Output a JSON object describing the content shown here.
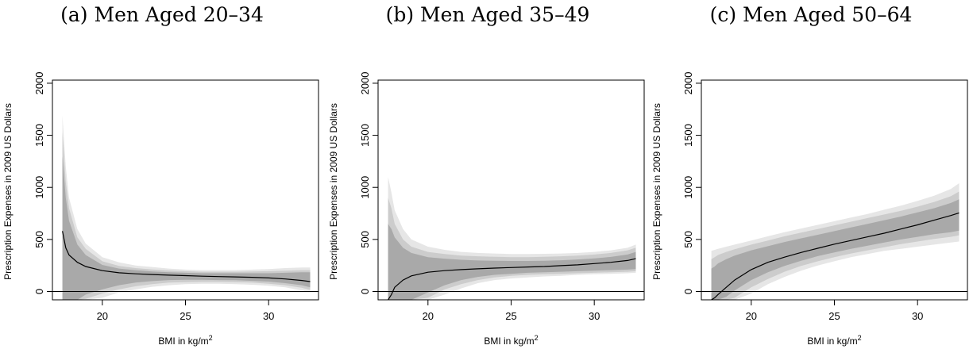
{
  "colors": {
    "band_outer": "#e6e6e6",
    "band_mid": "#cccccc",
    "band_inner": "#a9a9a9",
    "line": "#000000",
    "axis": "#000000"
  },
  "chart_data": [
    {
      "type": "line",
      "title": "(a) Men Aged 20–34",
      "xlabel": "BMI in kg/m",
      "xlabel_sup": "2",
      "ylabel": "Prescription Expenses in 2009 US Dollars",
      "xlim": [
        17.0,
        33.0
      ],
      "ylim": [
        -80,
        2030
      ],
      "xticks": [
        20,
        25,
        30
      ],
      "yticks": [
        0,
        500,
        1000,
        1500,
        2000
      ],
      "hline": 0,
      "x": [
        17.6,
        17.8,
        18,
        18.5,
        19,
        20,
        21,
        22,
        23,
        24,
        25,
        26,
        27,
        28,
        29,
        30,
        31,
        32,
        32.5
      ],
      "series": [
        {
          "values": [
            580,
            420,
            350,
            280,
            240,
            200,
            180,
            170,
            163,
            157,
            152,
            147,
            143,
            140,
            136,
            130,
            120,
            106,
            95
          ]
        }
      ],
      "bands": [
        {
          "lower": [
            -80,
            -80,
            -80,
            -80,
            -80,
            -60,
            -10,
            20,
            45,
            60,
            70,
            75,
            75,
            70,
            65,
            55,
            40,
            10,
            -10
          ],
          "upper": [
            1690,
            1200,
            900,
            600,
            460,
            330,
            280,
            250,
            235,
            220,
            210,
            205,
            205,
            205,
            210,
            215,
            225,
            230,
            230
          ]
        },
        {
          "lower": [
            -80,
            -80,
            -80,
            -80,
            -70,
            -20,
            20,
            50,
            70,
            85,
            90,
            92,
            92,
            90,
            85,
            75,
            60,
            35,
            15
          ],
          "upper": [
            1530,
            1050,
            800,
            520,
            410,
            290,
            245,
            225,
            212,
            202,
            195,
            190,
            190,
            190,
            192,
            195,
            200,
            205,
            205
          ]
        },
        {
          "lower": [
            -80,
            -80,
            -80,
            -80,
            -30,
            20,
            60,
            85,
            100,
            110,
            112,
            112,
            110,
            108,
            102,
            95,
            80,
            60,
            40
          ],
          "upper": [
            1300,
            900,
            680,
            450,
            350,
            255,
            220,
            205,
            192,
            185,
            180,
            175,
            175,
            175,
            175,
            175,
            180,
            185,
            185
          ]
        }
      ]
    },
    {
      "type": "line",
      "title": "(b) Men Aged 35–49",
      "xlabel": "BMI in kg/m",
      "xlabel_sup": "2",
      "ylabel": "Prescription Expenses in 2009 US Dollars",
      "xlim": [
        17.0,
        33.0
      ],
      "ylim": [
        -80,
        2030
      ],
      "xticks": [
        20,
        25,
        30
      ],
      "yticks": [
        0,
        500,
        1000,
        1500,
        2000
      ],
      "hline": 0,
      "x": [
        17.6,
        17.8,
        18,
        18.5,
        19,
        20,
        21,
        22,
        23,
        24,
        25,
        26,
        27,
        28,
        29,
        30,
        31,
        32,
        32.5
      ],
      "series": [
        {
          "values": [
            -80,
            -30,
            40,
            110,
            150,
            185,
            200,
            210,
            218,
            225,
            230,
            235,
            240,
            248,
            256,
            268,
            280,
            298,
            315
          ]
        }
      ],
      "bands": [
        {
          "lower": [
            -80,
            -80,
            -80,
            -80,
            -80,
            -80,
            -30,
            30,
            80,
            110,
            125,
            135,
            145,
            150,
            160,
            165,
            170,
            175,
            180
          ],
          "upper": [
            1100,
            950,
            780,
            600,
            500,
            430,
            400,
            380,
            370,
            365,
            360,
            360,
            362,
            365,
            370,
            380,
            395,
            420,
            450
          ]
        },
        {
          "lower": [
            -80,
            -80,
            -80,
            -80,
            -80,
            -60,
            20,
            70,
            110,
            135,
            150,
            160,
            165,
            170,
            175,
            180,
            185,
            190,
            195
          ],
          "upper": [
            900,
            800,
            650,
            500,
            430,
            380,
            360,
            345,
            338,
            333,
            330,
            330,
            333,
            338,
            345,
            355,
            370,
            395,
            420
          ]
        },
        {
          "lower": [
            -80,
            -80,
            -80,
            -80,
            -80,
            -10,
            60,
            110,
            140,
            160,
            170,
            180,
            185,
            190,
            195,
            200,
            205,
            210,
            215
          ],
          "upper": [
            650,
            600,
            520,
            420,
            370,
            330,
            315,
            305,
            298,
            295,
            293,
            293,
            295,
            300,
            308,
            318,
            332,
            355,
            380
          ]
        }
      ]
    },
    {
      "type": "line",
      "title": "(c) Men Aged 50–64",
      "xlabel": "BMI in kg/m",
      "xlabel_sup": "2",
      "ylabel": "Prescription Expenses in 2009 US Dollars",
      "xlim": [
        17.0,
        33.0
      ],
      "ylim": [
        -80,
        2030
      ],
      "xticks": [
        20,
        25,
        30
      ],
      "yticks": [
        0,
        500,
        1000,
        1500,
        2000
      ],
      "hline": 0,
      "x": [
        17.6,
        17.8,
        18,
        18.5,
        19,
        20,
        21,
        22,
        23,
        24,
        25,
        26,
        27,
        28,
        29,
        30,
        31,
        32,
        32.5
      ],
      "series": [
        {
          "values": [
            -80,
            -60,
            -30,
            40,
            110,
            210,
            280,
            330,
            375,
            415,
            455,
            490,
            525,
            560,
            600,
            640,
            685,
            730,
            755
          ]
        }
      ],
      "bands": [
        {
          "lower": [
            -80,
            -80,
            -80,
            -80,
            -80,
            -20,
            70,
            140,
            200,
            250,
            290,
            330,
            360,
            390,
            410,
            430,
            450,
            470,
            480
          ],
          "upper": [
            390,
            400,
            410,
            430,
            450,
            490,
            530,
            570,
            605,
            640,
            675,
            710,
            745,
            785,
            825,
            870,
            920,
            985,
            1040
          ]
        },
        {
          "lower": [
            -80,
            -80,
            -80,
            -80,
            -60,
            40,
            120,
            190,
            245,
            290,
            330,
            365,
            395,
            425,
            455,
            480,
            505,
            525,
            540
          ],
          "upper": [
            310,
            330,
            350,
            380,
            405,
            450,
            490,
            530,
            565,
            600,
            635,
            670,
            705,
            740,
            775,
            815,
            860,
            915,
            960
          ]
        },
        {
          "lower": [
            -80,
            -80,
            -80,
            -50,
            10,
            110,
            185,
            245,
            295,
            340,
            375,
            410,
            440,
            470,
            500,
            525,
            550,
            570,
            585
          ],
          "upper": [
            220,
            240,
            270,
            310,
            345,
            395,
            435,
            475,
            510,
            545,
            580,
            615,
            650,
            685,
            720,
            760,
            800,
            850,
            885
          ]
        }
      ]
    }
  ]
}
